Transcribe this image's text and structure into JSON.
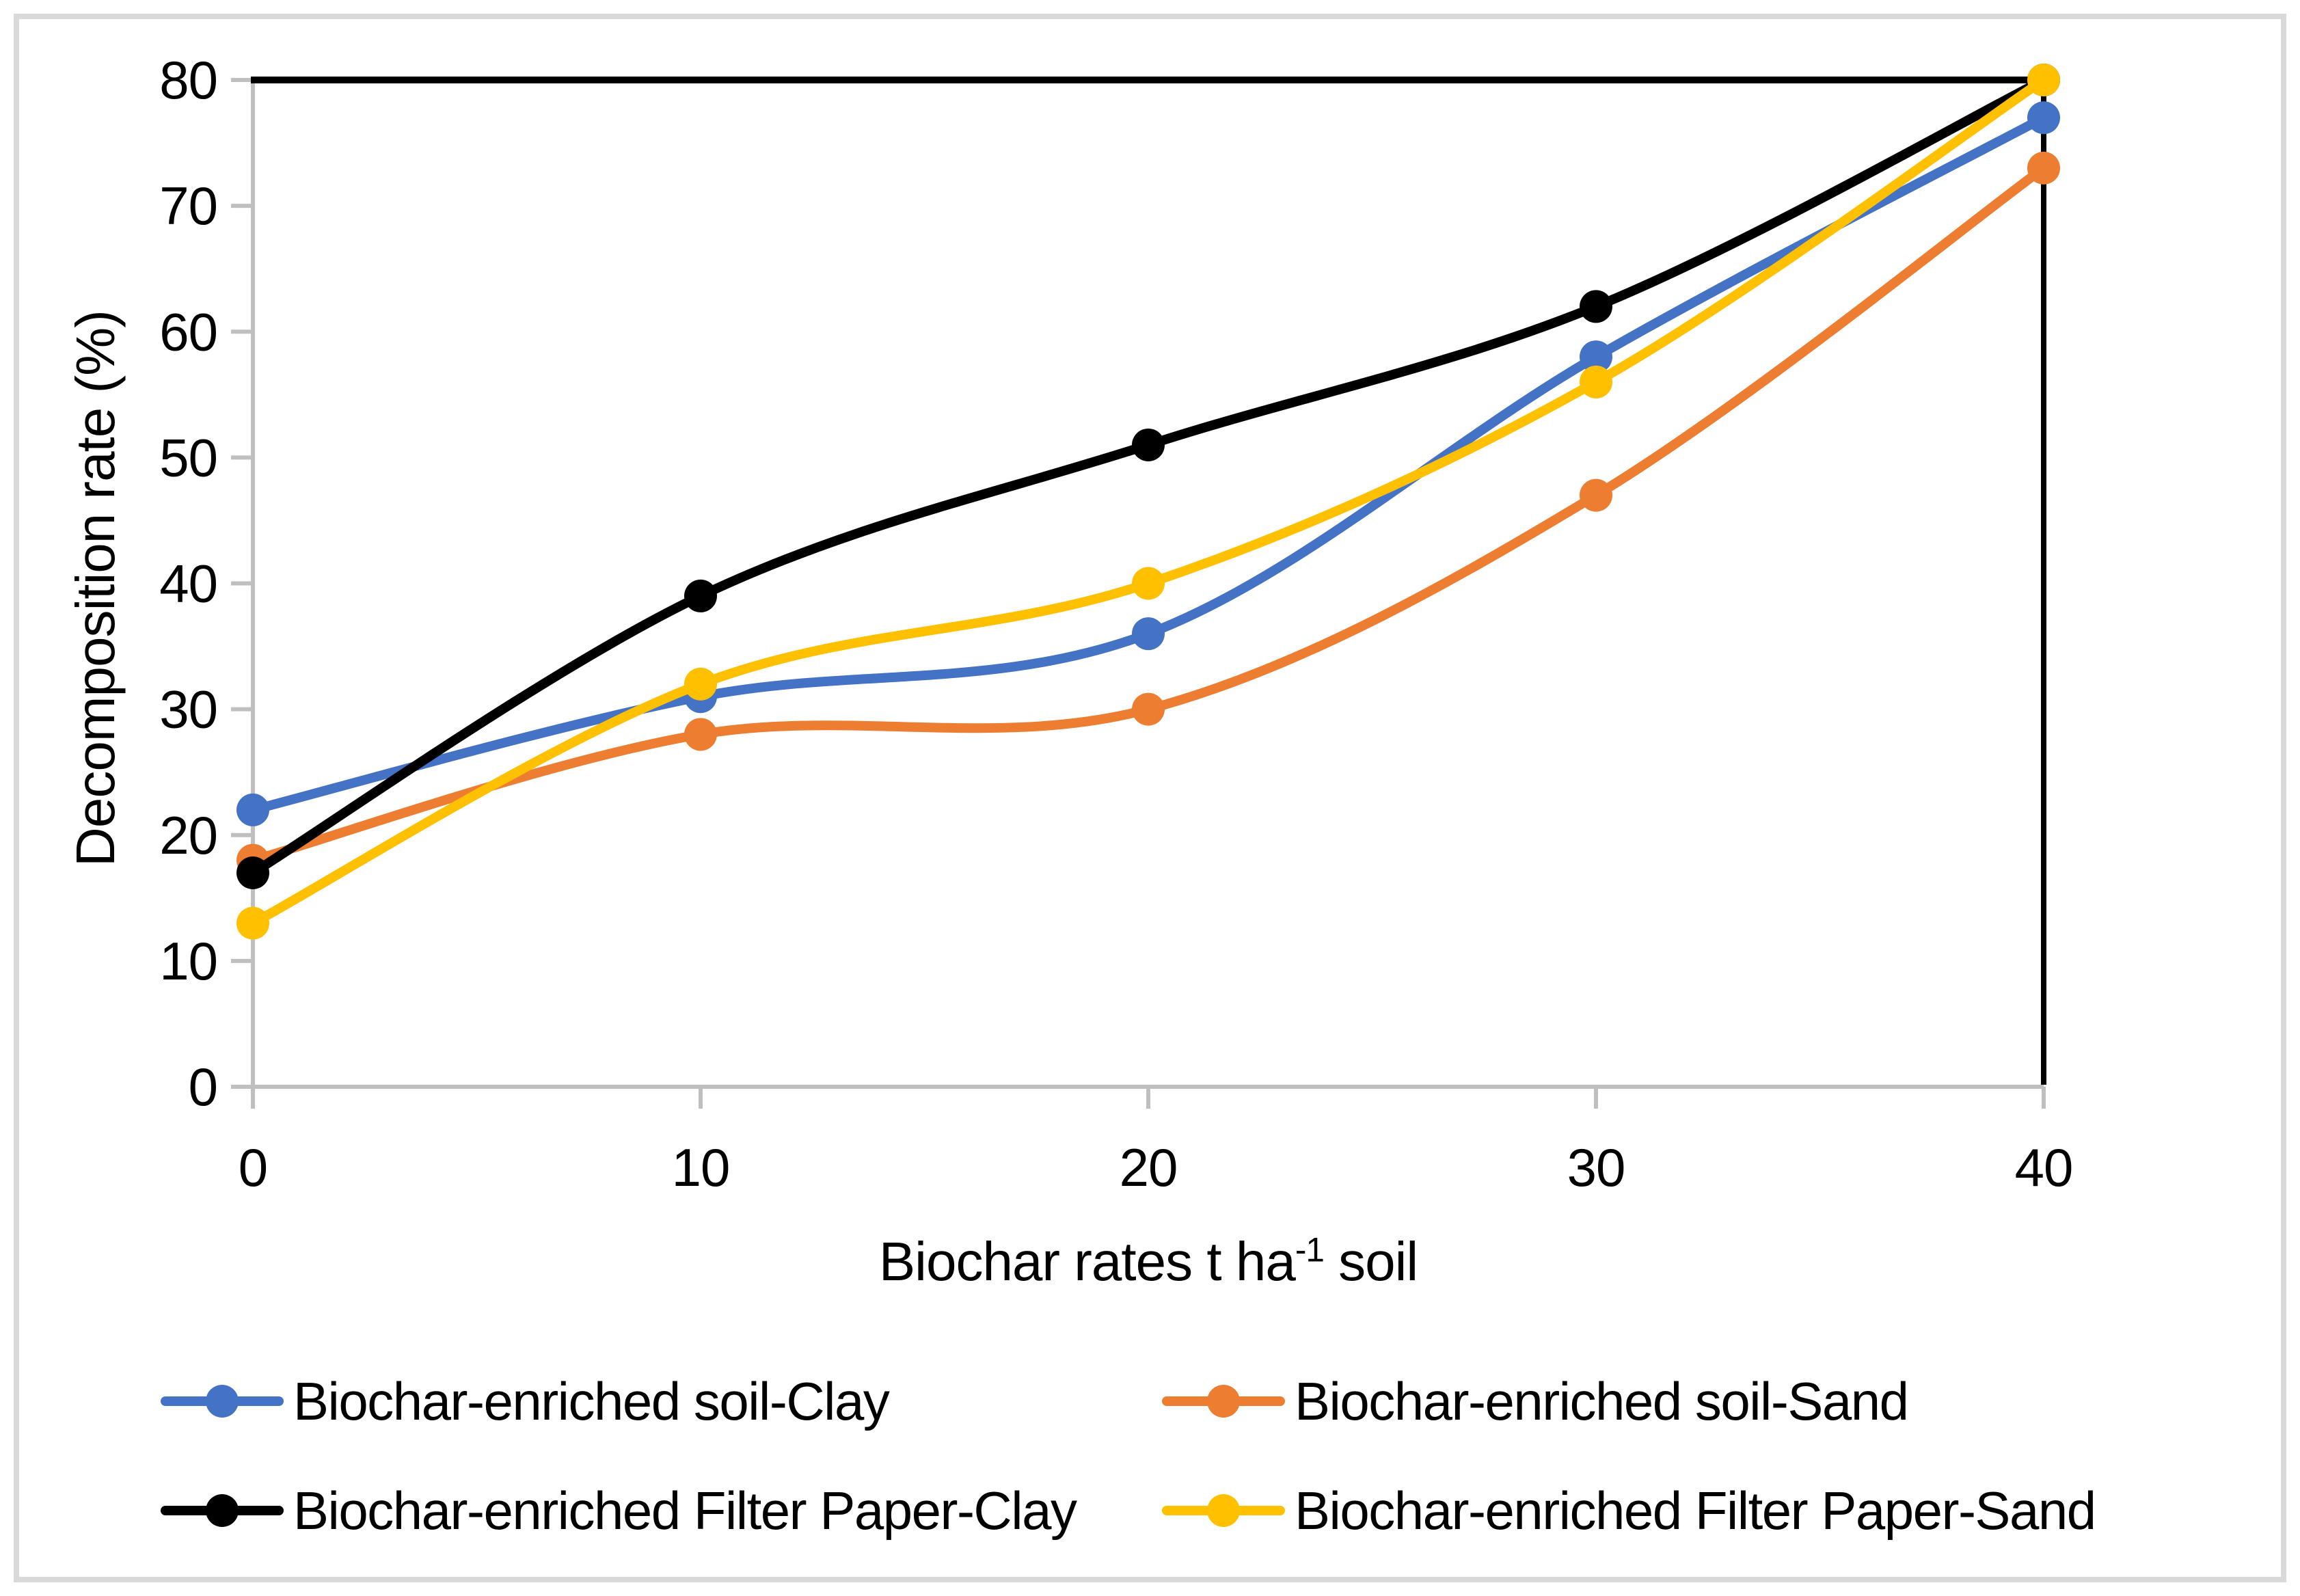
{
  "figure": {
    "background": "#ffffff",
    "border_color": "#D9D9D9"
  },
  "y_axis": {
    "title": "Decomposition rate (%)",
    "tick_labels": [
      "0",
      "10",
      "20",
      "30",
      "40",
      "50",
      "60",
      "70",
      "80"
    ],
    "ticks": [
      0,
      10,
      20,
      30,
      40,
      50,
      60,
      70,
      80
    ],
    "min": 0,
    "max": 80,
    "axis_color": "#BFBFBF",
    "label_color": "#000000"
  },
  "x_axis": {
    "title_prefix": "Biochar rates t ha",
    "title_sup": "-1",
    "title_suffix": " soil",
    "tick_labels": [
      "0",
      "10",
      "20",
      "30",
      "40"
    ],
    "ticks": [
      0,
      10,
      20,
      30,
      40
    ],
    "min": 0,
    "max": 40,
    "axis_color": "#BFBFBF",
    "label_color": "#000000"
  },
  "plot_border": {
    "top_color": "#000000",
    "right_color": "#000000"
  },
  "chart_data": {
    "type": "line",
    "smooth": true,
    "grid": false,
    "legend_position": "bottom",
    "title": "",
    "xlabel": "Biochar rates t ha⁻¹ soil",
    "ylabel": "Decomposition rate (%)",
    "xlim": [
      0,
      40
    ],
    "ylim": [
      0,
      80
    ],
    "x": [
      0,
      10,
      20,
      30,
      40
    ],
    "series": [
      {
        "name": "Biochar-enriched soil-Clay",
        "color": "#4472C4",
        "values": [
          22,
          31,
          36,
          58,
          77
        ]
      },
      {
        "name": "Biochar-enriched soil-Sand",
        "color": "#ED7D31",
        "values": [
          18,
          28,
          30,
          47,
          73
        ]
      },
      {
        "name": "Biochar-enriched Filter Paper-Clay",
        "color": "#000000",
        "values": [
          17,
          39,
          51,
          62,
          80
        ]
      },
      {
        "name": "Biochar-enriched Filter Paper-Sand",
        "color": "#FFC000",
        "values": [
          13,
          32,
          40,
          56,
          80
        ]
      }
    ],
    "marker": "circle"
  },
  "legend": {
    "items": [
      {
        "label": "Biochar-enriched soil-Clay",
        "color": "#4472C4"
      },
      {
        "label": "Biochar-enriched soil-Sand",
        "color": "#ED7D31"
      },
      {
        "label": "Biochar-enriched Filter Paper-Clay",
        "color": "#000000"
      },
      {
        "label": "Biochar-enriched Filter Paper-Sand",
        "color": "#FFC000"
      }
    ]
  }
}
